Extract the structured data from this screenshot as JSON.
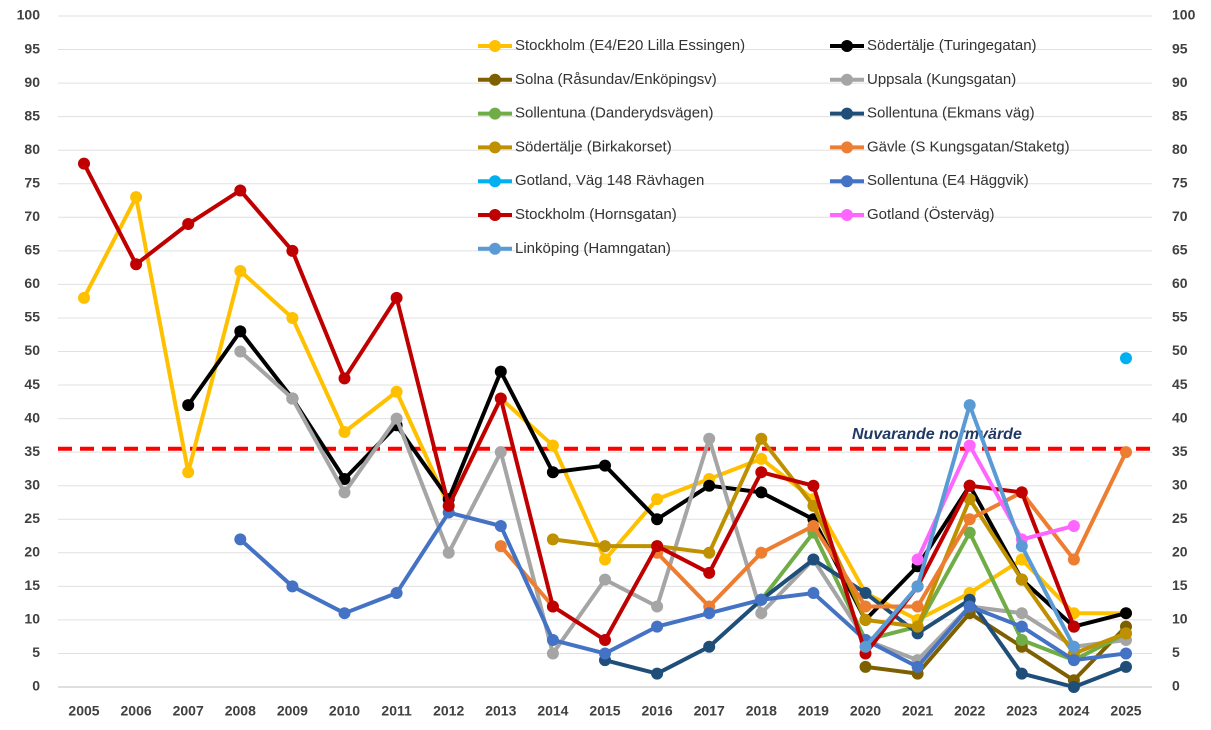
{
  "chart_data": {
    "type": "line",
    "categories": [
      "2005",
      "2006",
      "2007",
      "2008",
      "2009",
      "2010",
      "2011",
      "2012",
      "2013",
      "2014",
      "2015",
      "2016",
      "2017",
      "2018",
      "2019",
      "2020",
      "2021",
      "2022",
      "2023",
      "2024",
      "2025"
    ],
    "ylim": [
      0,
      100
    ],
    "yticks": [
      0,
      5,
      10,
      15,
      20,
      25,
      30,
      35,
      40,
      45,
      50,
      55,
      60,
      65,
      70,
      75,
      80,
      85,
      90,
      95,
      100
    ],
    "y2lim": [
      0,
      100
    ],
    "y2ticks": [
      0,
      5,
      10,
      15,
      20,
      25,
      30,
      35,
      40,
      45,
      50,
      55,
      60,
      65,
      70,
      75,
      80,
      85,
      90,
      95,
      100
    ],
    "grid": true,
    "reference_line": {
      "value": 35.5,
      "label": "Nuvarande normvärde",
      "color": "#ff0000"
    },
    "series": [
      {
        "name": "Stockholm (E4/E20 Lilla Essingen)",
        "color": "#ffc000",
        "values": [
          58,
          73,
          32,
          62,
          55,
          38,
          44,
          27,
          43,
          36,
          19,
          28,
          31,
          34,
          28,
          14,
          10,
          14,
          19,
          11,
          11
        ]
      },
      {
        "name": "Södertälje (Turingegatan)",
        "color": "#000000",
        "values": [
          null,
          null,
          42,
          53,
          43,
          31,
          39,
          28,
          47,
          32,
          33,
          25,
          30,
          29,
          25,
          10,
          18,
          30,
          16,
          9,
          11
        ]
      },
      {
        "name": "Solna (Råsundav/Enköpingsv)",
        "color": "#7f6000",
        "values": [
          null,
          null,
          null,
          null,
          null,
          null,
          null,
          null,
          null,
          null,
          null,
          null,
          null,
          null,
          null,
          3,
          2,
          11,
          6,
          1,
          9
        ]
      },
      {
        "name": "Uppsala (Kungsgatan)",
        "color": "#a5a5a5",
        "values": [
          null,
          null,
          null,
          50,
          43,
          29,
          40,
          20,
          35,
          5,
          16,
          12,
          37,
          11,
          19,
          7,
          4,
          12,
          11,
          6,
          7
        ]
      },
      {
        "name": "Sollentuna (Danderydsvägen)",
        "color": "#70ad47",
        "values": [
          null,
          null,
          null,
          null,
          null,
          null,
          null,
          null,
          null,
          null,
          null,
          null,
          null,
          13,
          23,
          7,
          9,
          23,
          7,
          4,
          8
        ]
      },
      {
        "name": "Sollentuna (Ekmans väg)",
        "color": "#1f4e79",
        "values": [
          null,
          null,
          null,
          null,
          null,
          null,
          null,
          null,
          null,
          null,
          4,
          2,
          6,
          13,
          19,
          14,
          8,
          13,
          2,
          0,
          3
        ]
      },
      {
        "name": "Södertälje (Birkakorset)",
        "color": "#bf9000",
        "values": [
          null,
          null,
          null,
          null,
          null,
          null,
          null,
          null,
          null,
          22,
          21,
          21,
          20,
          37,
          27,
          10,
          9,
          28,
          16,
          5,
          8
        ]
      },
      {
        "name": "Gävle (S Kungsgatan/Staketg)",
        "color": "#ed7d31",
        "values": [
          null,
          null,
          null,
          null,
          null,
          null,
          null,
          null,
          21,
          12,
          null,
          20,
          12,
          20,
          24,
          12,
          12,
          25,
          29,
          19,
          35
        ]
      },
      {
        "name": "Gotland, Väg 148 Rävhagen",
        "color": "#00b0f0",
        "values": [
          null,
          null,
          null,
          null,
          null,
          null,
          null,
          null,
          null,
          null,
          null,
          null,
          null,
          null,
          null,
          null,
          null,
          null,
          null,
          null,
          49
        ]
      },
      {
        "name": "Sollentuna (E4 Häggvik)",
        "color": "#4472c4",
        "values": [
          null,
          null,
          null,
          22,
          15,
          11,
          14,
          26,
          24,
          7,
          5,
          9,
          11,
          13,
          14,
          7,
          3,
          12,
          9,
          4,
          5
        ]
      },
      {
        "name": "Stockholm (Hornsgatan)",
        "color": "#c00000",
        "values": [
          78,
          63,
          69,
          74,
          65,
          46,
          58,
          27,
          43,
          12,
          7,
          21,
          17,
          32,
          30,
          5,
          15,
          30,
          29,
          9,
          null
        ]
      },
      {
        "name": "Gotland (Österväg)",
        "color": "#ff66ff",
        "values": [
          null,
          null,
          null,
          null,
          null,
          null,
          null,
          null,
          null,
          null,
          null,
          null,
          null,
          null,
          null,
          null,
          19,
          36,
          22,
          24,
          null
        ]
      },
      {
        "name": "Linköping (Hamngatan)",
        "color": "#5b9bd5",
        "values": [
          null,
          null,
          null,
          null,
          null,
          null,
          null,
          null,
          null,
          null,
          null,
          null,
          null,
          null,
          null,
          6,
          15,
          42,
          21,
          6,
          null
        ]
      }
    ]
  }
}
